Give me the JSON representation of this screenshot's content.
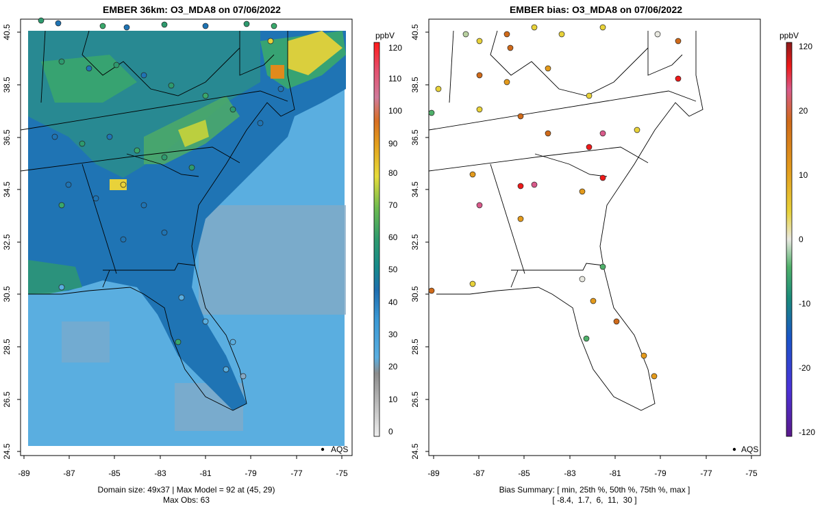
{
  "left_panel": {
    "title": "EMBER 36km: O3_MDA8 on 07/06/2022",
    "footer_line1": "Domain size: 49x37 | Max Model = 92 at (45, 29)",
    "footer_line2": "Max Obs: 63",
    "legend_marker_label": "AQS",
    "colorbar_unit": "ppbV",
    "colorbar_ticks": [
      "0",
      "10",
      "20",
      "30",
      "40",
      "50",
      "60",
      "70",
      "80",
      "90",
      "100",
      "110",
      "120"
    ]
  },
  "right_panel": {
    "title": "EMBER bias: O3_MDA8 on 07/06/2022",
    "footer_line1": "Bias Summary: [ min, 25th %, 50th %, 75th %, max ]",
    "footer_line2": "[ -8.4,  1.7,  6,  11,  30 ]",
    "legend_marker_label": "AQS",
    "colorbar_unit": "ppbV",
    "colorbar_ticks": [
      "120",
      "20",
      "10",
      "0",
      "-10",
      "-20",
      "-120"
    ]
  },
  "axes": {
    "x_ticks": [
      "-89",
      "-87",
      "-85",
      "-83",
      "-81",
      "-79",
      "-77",
      "-75"
    ],
    "y_ticks": [
      "40.5",
      "38.5",
      "36.5",
      "34.5",
      "32.5",
      "30.5",
      "28.5",
      "26.5",
      "24.5"
    ]
  },
  "colors": {
    "ocean_light": "#5aaee0",
    "land_mid": "#1f7fb6",
    "land_green": "#2e9a6e",
    "hotspot": "#e8d23a"
  }
}
